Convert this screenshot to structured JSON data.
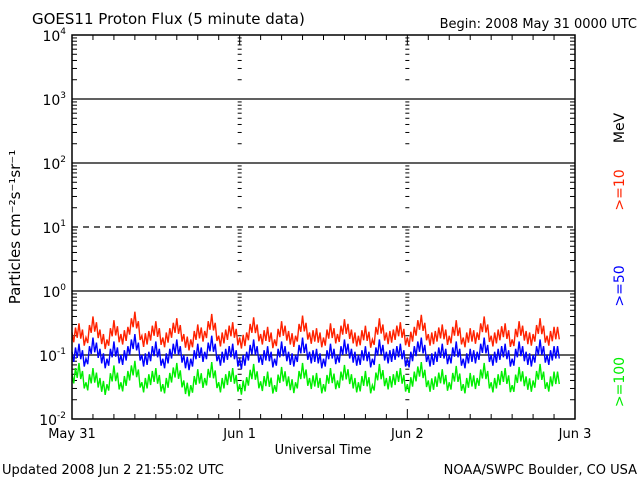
{
  "chart_data": {
    "type": "line",
    "title": "GOES11 Proton Flux (5 minute data)",
    "begin_label": "Begin: 2008 May 31 0000 UTC",
    "xlabel": "Universal Time",
    "ylabel": "Particles cm⁻²s⁻¹sr⁻¹",
    "yscale": "log",
    "ylim": [
      0.01,
      10000
    ],
    "xlim_hours": [
      0,
      72
    ],
    "x_tick_labels": [
      "May 31",
      "Jun 1",
      "Jun 2",
      "Jun 3"
    ],
    "y_tick_labels": [
      {
        "base": "10",
        "exp": "4"
      },
      {
        "base": "10",
        "exp": "3"
      },
      {
        "base": "10",
        "exp": "2"
      },
      {
        "base": "10",
        "exp": "1"
      },
      {
        "base": "10",
        "exp": "0"
      },
      {
        "base": "10",
        "exp": "-1"
      },
      {
        "base": "10",
        "exp": "-2"
      }
    ],
    "units_label": "MeV",
    "x_hours_step": 1,
    "series": [
      {
        "name": ">=10",
        "color": "#ff2200",
        "values": [
          0.18,
          0.25,
          0.15,
          0.32,
          0.2,
          0.14,
          0.28,
          0.17,
          0.22,
          0.38,
          0.16,
          0.19,
          0.27,
          0.15,
          0.21,
          0.3,
          0.17,
          0.14,
          0.24,
          0.19,
          0.35,
          0.16,
          0.2,
          0.26,
          0.15,
          0.18,
          0.31,
          0.17,
          0.22,
          0.14,
          0.27,
          0.19,
          0.16,
          0.33,
          0.18,
          0.21,
          0.15,
          0.25,
          0.17,
          0.29,
          0.2,
          0.16,
          0.23,
          0.14,
          0.3,
          0.18,
          0.2,
          0.26,
          0.15,
          0.22,
          0.34,
          0.17,
          0.19,
          0.24,
          0.16,
          0.28,
          0.15,
          0.21,
          0.18,
          0.32,
          0.16,
          0.2,
          0.25,
          0.14,
          0.27,
          0.19,
          0.17,
          0.3,
          0.16,
          0.22
        ]
      },
      {
        "name": ">=50",
        "color": "#0000ff",
        "values": [
          0.09,
          0.12,
          0.07,
          0.15,
          0.1,
          0.07,
          0.13,
          0.08,
          0.11,
          0.17,
          0.08,
          0.09,
          0.13,
          0.07,
          0.1,
          0.14,
          0.08,
          0.07,
          0.12,
          0.09,
          0.16,
          0.08,
          0.1,
          0.12,
          0.07,
          0.09,
          0.14,
          0.08,
          0.11,
          0.07,
          0.13,
          0.09,
          0.08,
          0.15,
          0.09,
          0.1,
          0.07,
          0.12,
          0.08,
          0.14,
          0.1,
          0.08,
          0.11,
          0.07,
          0.14,
          0.09,
          0.1,
          0.12,
          0.07,
          0.11,
          0.15,
          0.08,
          0.09,
          0.12,
          0.08,
          0.13,
          0.07,
          0.1,
          0.09,
          0.15,
          0.08,
          0.1,
          0.12,
          0.07,
          0.13,
          0.09,
          0.08,
          0.14,
          0.08,
          0.11
        ]
      },
      {
        "name": ">=100",
        "color": "#00ee00",
        "values": [
          0.04,
          0.06,
          0.03,
          0.05,
          0.035,
          0.028,
          0.055,
          0.03,
          0.045,
          0.065,
          0.03,
          0.04,
          0.05,
          0.028,
          0.042,
          0.06,
          0.032,
          0.027,
          0.048,
          0.035,
          0.062,
          0.03,
          0.04,
          0.05,
          0.028,
          0.036,
          0.058,
          0.031,
          0.044,
          0.027,
          0.052,
          0.037,
          0.03,
          0.06,
          0.035,
          0.042,
          0.028,
          0.05,
          0.032,
          0.056,
          0.04,
          0.03,
          0.045,
          0.027,
          0.058,
          0.035,
          0.04,
          0.05,
          0.028,
          0.044,
          0.062,
          0.032,
          0.037,
          0.048,
          0.03,
          0.054,
          0.028,
          0.042,
          0.035,
          0.06,
          0.03,
          0.04,
          0.05,
          0.027,
          0.052,
          0.037,
          0.032,
          0.058,
          0.03,
          0.044
        ]
      }
    ]
  },
  "footer": {
    "updated": "Updated 2008 Jun  2 21:55:02 UTC",
    "credit": "NOAA/SWPC Boulder, CO USA"
  }
}
